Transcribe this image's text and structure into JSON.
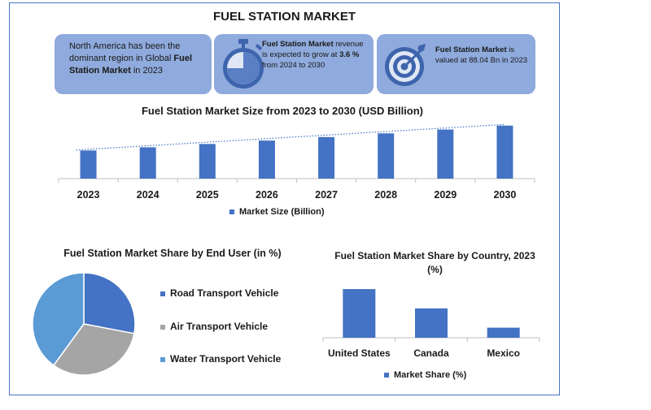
{
  "title": "FUEL STATION MARKET",
  "cards": [
    {
      "parts": [
        {
          "text": "North America has been the dominant region in Global ",
          "bold": false
        },
        {
          "text": "Fuel Station Market",
          "bold": true
        },
        {
          "text": " in 2023",
          "bold": false
        }
      ],
      "icon": null
    },
    {
      "parts": [
        {
          "text": "Fuel Station Market",
          "bold": true
        },
        {
          "text": " revenue is expected to grow at ",
          "bold": false
        },
        {
          "text": "3.6 %",
          "bold": true
        },
        {
          "text": " from 2024 to 2030",
          "bold": false
        }
      ],
      "icon": "stopwatch-icon"
    },
    {
      "parts": [
        {
          "text": "Fuel Station Market",
          "bold": true
        },
        {
          "text": " is valued at 88.04 Bn in 2023",
          "bold": false
        }
      ],
      "icon": "target-icon"
    }
  ],
  "colors": {
    "bar": "#4472c4",
    "card": "#8faadc",
    "pie_road": "#4472c4",
    "pie_air": "#a5a5a5",
    "pie_water": "#5b9bd5",
    "frame": "#4a74c4"
  },
  "chart_data": [
    {
      "type": "bar",
      "title": "Fuel Station Market Size from 2023 to 2030 (USD Billion)",
      "categories": [
        "2023",
        "2024",
        "2025",
        "2026",
        "2027",
        "2028",
        "2029",
        "2030"
      ],
      "series": [
        {
          "name": "Market Size (Billion)",
          "values": [
            88.04,
            91.2,
            94.5,
            97.9,
            101.4,
            105.1,
            108.9,
            112.8
          ]
        }
      ],
      "trendline": "linear-dotted",
      "ylim": [
        60,
        115
      ],
      "grid": false,
      "legend": "bottom"
    },
    {
      "type": "pie",
      "title": "Fuel Station  Market Share by End User (in %)",
      "labels": [
        "Road Transport Vehicle",
        "Air Transport Vehicle",
        "Water Transport Vehicle"
      ],
      "values": [
        28,
        32,
        40
      ],
      "legend": "right"
    },
    {
      "type": "bar",
      "title": "Fuel Station Market  Share by Country, 2023 (%)",
      "categories": [
        "United States",
        "Canada",
        "Mexico"
      ],
      "series": [
        {
          "name": "Market Share (%)",
          "values": [
            58,
            35,
            12
          ]
        }
      ],
      "ylim": [
        0,
        60
      ],
      "grid": false,
      "legend": "bottom"
    }
  ]
}
